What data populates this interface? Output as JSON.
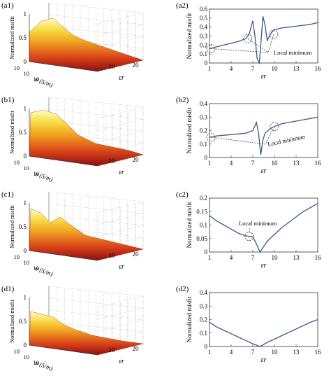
{
  "figure": {
    "bottom_caption_fragment": "",
    "panels_left": [
      {
        "tag": "(a1)",
        "xlabel": "σ (S/m)",
        "ylabel": "εr",
        "zlabel": "Normalized misfit",
        "sigma_ticks": [
          "10",
          "10",
          "10"
        ],
        "eps_ticks": [
          "10",
          "20"
        ],
        "z_ticks": [
          "1",
          "0.5",
          "0"
        ]
      },
      {
        "tag": "(b1)",
        "xlabel": "σ (S/m)",
        "ylabel": "εr",
        "zlabel": "Normalized misfit",
        "sigma_ticks": [
          "10",
          "10",
          "10"
        ],
        "eps_ticks": [
          "10",
          "20"
        ],
        "z_ticks": [
          "1",
          "0.5",
          "0"
        ]
      },
      {
        "tag": "(c1)",
        "xlabel": "σ (S/m)",
        "ylabel": "εr",
        "zlabel": "Normalized misfit",
        "sigma_ticks": [
          "10",
          "10",
          "10"
        ],
        "eps_ticks": [
          "10",
          "20"
        ],
        "z_ticks": [
          "1",
          "0.5",
          "0"
        ]
      },
      {
        "tag": "(d1)",
        "xlabel": "σ (S/m)",
        "ylabel": "εr",
        "zlabel": "Normalized misfit",
        "sigma_ticks": [
          "10",
          "10",
          "10"
        ],
        "eps_ticks": [
          "10",
          "20"
        ],
        "z_ticks": [
          "1",
          "0.5",
          "0"
        ]
      }
    ],
    "annotation_local_min": "Local minimum"
  },
  "chart_data": [
    {
      "type": "line",
      "tag": "(a2)",
      "xlabel": "εr",
      "ylabel": "Normalized misfit",
      "xlim": [
        1,
        16
      ],
      "ylim": [
        0,
        0.6
      ],
      "xticks": [
        "1",
        "4",
        "7",
        "10",
        "13",
        "16"
      ],
      "yticks": [
        "0",
        "0.1",
        "0.2",
        "0.3",
        "0.4",
        "0.5",
        "0.6"
      ],
      "x": [
        1,
        2,
        3,
        4,
        5,
        6,
        6.5,
        7,
        7.3,
        7.6,
        7.9,
        8.1,
        8.4,
        8.7,
        9,
        9.3,
        9.6,
        10,
        10.5,
        11,
        12,
        13,
        14,
        15,
        16
      ],
      "y": [
        0.16,
        0.18,
        0.2,
        0.22,
        0.24,
        0.27,
        0.32,
        0.47,
        0.3,
        0.05,
        0.0,
        0.2,
        0.52,
        0.42,
        0.25,
        0.3,
        0.34,
        0.37,
        0.38,
        0.39,
        0.4,
        0.41,
        0.42,
        0.43,
        0.45
      ]
    },
    {
      "type": "line",
      "tag": "(b2)",
      "xlabel": "εr",
      "ylabel": "Normalized misfit",
      "xlim": [
        1,
        16
      ],
      "ylim": [
        0,
        0.4
      ],
      "xticks": [
        "1",
        "4",
        "7",
        "10",
        "13",
        "16"
      ],
      "yticks": [
        "0",
        "0.1",
        "0.2",
        "0.3",
        "0.4"
      ],
      "x": [
        1,
        2,
        3,
        4,
        5,
        6,
        6.5,
        7,
        7.5,
        7.8,
        8.1,
        8.4,
        8.7,
        9,
        9.3,
        9.6,
        10,
        11,
        12,
        13,
        14,
        15,
        16
      ],
      "y": [
        0.15,
        0.16,
        0.165,
        0.17,
        0.175,
        0.18,
        0.19,
        0.2,
        0.26,
        0.18,
        0.02,
        0.13,
        0.18,
        0.195,
        0.21,
        0.22,
        0.23,
        0.25,
        0.26,
        0.27,
        0.28,
        0.29,
        0.3
      ]
    },
    {
      "type": "line",
      "tag": "(c2)",
      "xlabel": "εr",
      "ylabel": "Normalized misfit",
      "xlim": [
        1,
        16
      ],
      "ylim": [
        0,
        0.2
      ],
      "xticks": [
        "1",
        "4",
        "7",
        "10",
        "13",
        "16"
      ],
      "yticks": [
        "0",
        "0.05",
        "0.1",
        "0.15",
        "0.2"
      ],
      "x": [
        1,
        2,
        3,
        4,
        5,
        6,
        6.5,
        7,
        7.5,
        8,
        8.5,
        9,
        10,
        11,
        12,
        13,
        14,
        15,
        16
      ],
      "y": [
        0.135,
        0.115,
        0.1,
        0.085,
        0.07,
        0.06,
        0.058,
        0.056,
        0.03,
        0.0,
        0.02,
        0.04,
        0.065,
        0.09,
        0.11,
        0.13,
        0.15,
        0.165,
        0.18
      ]
    },
    {
      "type": "line",
      "tag": "(d2)",
      "xlabel": "εr",
      "ylabel": "Normalized misfit",
      "xlim": [
        1,
        16
      ],
      "ylim": [
        0,
        0.4
      ],
      "xticks": [
        "1",
        "4",
        "7",
        "10",
        "13",
        "16"
      ],
      "yticks": [
        "0",
        "0.1",
        "0.2",
        "0.3",
        "0.4"
      ],
      "x": [
        1,
        2,
        3,
        4,
        5,
        6,
        7,
        8,
        9,
        10,
        11,
        12,
        13,
        14,
        15,
        16
      ],
      "y": [
        0.18,
        0.145,
        0.12,
        0.095,
        0.07,
        0.045,
        0.02,
        0.0,
        0.03,
        0.055,
        0.08,
        0.105,
        0.13,
        0.155,
        0.18,
        0.2
      ]
    }
  ]
}
